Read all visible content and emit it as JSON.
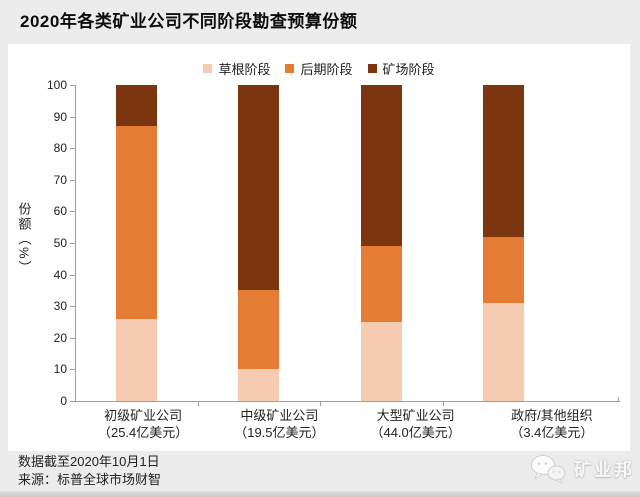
{
  "page": {
    "title": "2020年各类矿业公司不同阶段勘查预算份额",
    "notes": {
      "line1": "数据截至2020年10月1日",
      "line2": "来源：标普全球市场财智"
    },
    "watermark": {
      "brand": "矿业邦",
      "icon": "chat-bubbles-icon"
    }
  },
  "chart_data": {
    "type": "bar",
    "stacked": true,
    "title": "2020年各类矿业公司不同阶段勘查预算份额",
    "xlabel": "",
    "ylabel": "份额（%）",
    "ylim": [
      0,
      100
    ],
    "yticks": [
      0,
      10,
      20,
      30,
      40,
      50,
      60,
      70,
      80,
      90,
      100
    ],
    "grid": false,
    "legend_position": "top",
    "categories": [
      "初级矿业公司",
      "中级矿业公司",
      "大型矿业公司",
      "政府/其他组织"
    ],
    "category_sublabels": [
      "（25.4亿美元）",
      "（19.5亿美元）",
      "（44.0亿美元）",
      "（3.4亿美元）"
    ],
    "series": [
      {
        "name": "草根阶段",
        "color": "#F5CBB1",
        "values": [
          26,
          10,
          25,
          31
        ]
      },
      {
        "name": "后期阶段",
        "color": "#E57C35",
        "values": [
          61,
          25,
          24,
          21
        ]
      },
      {
        "name": "矿场阶段",
        "color": "#7B350F",
        "values": [
          13,
          65,
          51,
          48
        ]
      }
    ],
    "axis_color": "#9e9e9e"
  }
}
